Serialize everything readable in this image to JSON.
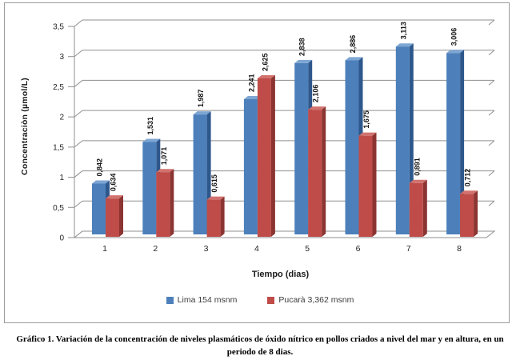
{
  "figure": {
    "caption": "Gráfico 1. Variación de la concentración de niveles plasmáticos de óxido nítrico en pollos criados a nivel del mar y en altura, en un periodo de 8 dias."
  },
  "chart_data": {
    "type": "bar",
    "style": "3d-clustered-column",
    "title": "",
    "xlabel": "Tiempo (dias)",
    "ylabel": "Concentraciòn (µmol/L)",
    "categories": [
      "1",
      "2",
      "3",
      "4",
      "5",
      "6",
      "7",
      "8"
    ],
    "series": [
      {
        "name": "Lima 154 msnm",
        "color": "#4d80bb",
        "color_top": "#7ea6d3",
        "color_side": "#2e578c",
        "values": [
          0.842,
          1.531,
          1.987,
          2.241,
          2.838,
          2.886,
          3.113,
          3.006
        ],
        "labels": [
          "0,842",
          "1,531",
          "1,987",
          "2,241",
          "2,838",
          "2,886",
          "3,113",
          "3,006"
        ]
      },
      {
        "name": "Pucarà 3,362 msnm",
        "color": "#bf4c49",
        "color_top": "#d1726e",
        "color_side": "#8b3432",
        "values": [
          0.634,
          1.071,
          0.615,
          2.625,
          2.106,
          1.675,
          0.891,
          0.712
        ],
        "labels": [
          "0,634",
          "1,071",
          "0,615",
          "2,625",
          "2,106",
          "1,675",
          "0,891",
          "0,712"
        ]
      }
    ],
    "y_axis": {
      "min": 0,
      "max": 3.5,
      "step": 0.5,
      "tick_labels": [
        "0",
        "0,5",
        "1",
        "1,5",
        "2",
        "2,5",
        "3",
        "3,5"
      ]
    },
    "legend_position": "bottom",
    "grid": true,
    "grid_color": "#8f8f8f"
  }
}
